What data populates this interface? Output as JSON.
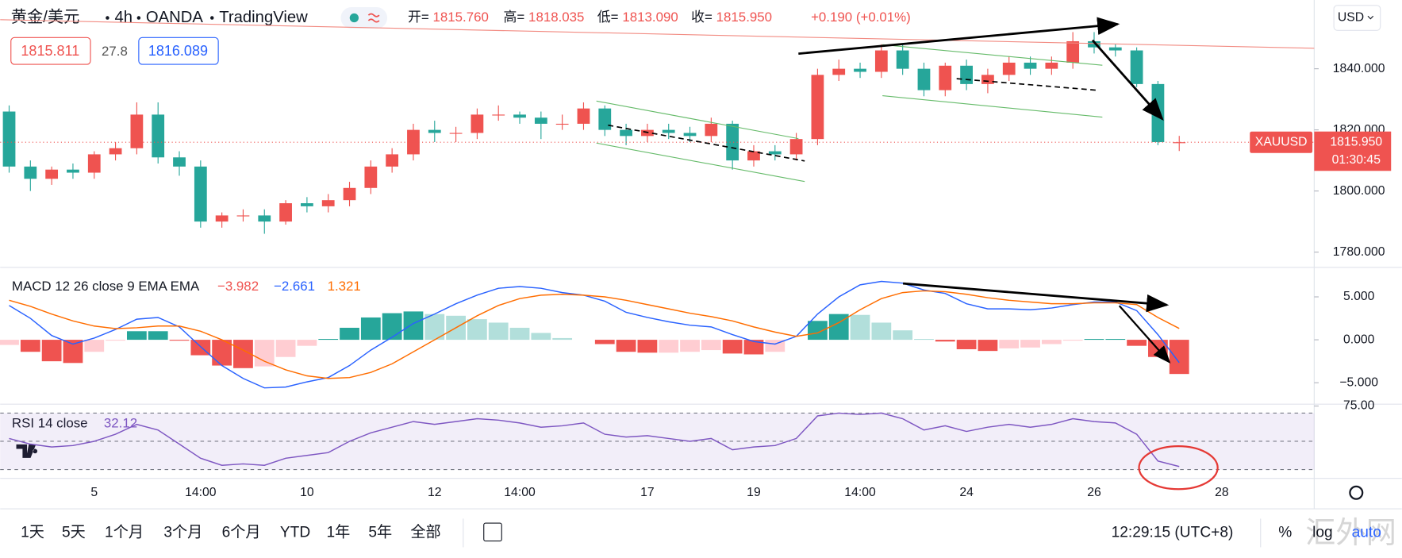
{
  "header": {
    "title": "黄金/美元",
    "interval": "4h",
    "broker": "OANDA",
    "platform": "TradingView",
    "ohlc": [
      {
        "label": "开=",
        "value": "1815.760"
      },
      {
        "label": "高=",
        "value": "1818.035"
      },
      {
        "label": "低=",
        "value": "1813.090"
      },
      {
        "label": "收=",
        "value": "1815.950"
      }
    ],
    "change": "+0.190 (+0.01%)",
    "bid": "1815.811",
    "spread": "27.8",
    "ask": "1816.089",
    "currency": "USD"
  },
  "price_tag": {
    "symbol": "XAUUSD",
    "price": "1815.950",
    "countdown": "01:30:45"
  },
  "chart_data": [
    {
      "type": "candlestick",
      "up_color": "#ef5350",
      "down_color": "#26a69a",
      "categories": [
        null,
        null,
        null,
        null,
        "5",
        null,
        null,
        null,
        null,
        "14:00",
        null,
        null,
        null,
        null,
        "10",
        null,
        null,
        null,
        null,
        null,
        "12",
        null,
        null,
        null,
        "14:00",
        null,
        null,
        null,
        null,
        null,
        "17",
        null,
        null,
        null,
        null,
        "19",
        null,
        null,
        null,
        null,
        "14:00",
        null,
        null,
        null,
        null,
        "24",
        null,
        null,
        null,
        null,
        null,
        "26",
        null,
        null,
        null,
        null,
        null,
        "28"
      ],
      "open": [
        1826,
        1808,
        1804,
        1807,
        1806,
        1812,
        1814,
        1825,
        1811,
        1808,
        1790,
        1792,
        1792,
        1790,
        1796,
        1795,
        1797,
        1801,
        1808,
        1812,
        1820,
        1819,
        1819,
        1825,
        1825,
        1824,
        1822,
        1822,
        1827,
        1820,
        1818,
        1820,
        1819,
        1818,
        1822,
        1810,
        1813,
        1812,
        1817,
        1838,
        1840,
        1839,
        1846,
        1840,
        1833,
        1841,
        1835,
        1838,
        1842,
        1840,
        1842,
        1849,
        1847,
        1846,
        1835,
        1815.76,
        null,
        null
      ],
      "high": [
        1828,
        1810,
        1808,
        1809,
        1813,
        1816,
        1829,
        1829,
        1813,
        1810,
        1793,
        1794,
        1794,
        1797,
        1798,
        1799,
        1803,
        1810,
        1814,
        1822,
        1823,
        1821,
        1827,
        1828,
        1826,
        1826,
        1825,
        1829,
        1828,
        1822,
        1822,
        1822,
        1821,
        1824,
        1823,
        1815,
        1815,
        1819,
        1840,
        1843,
        1842,
        1848,
        1848,
        1842,
        1842,
        1843,
        1840,
        1844,
        1844,
        1844,
        1852,
        1852,
        1848,
        1847,
        1836,
        1818.035,
        null,
        null
      ],
      "low": [
        1806,
        1800,
        1802,
        1804,
        1804,
        1810,
        1812,
        1809,
        1805,
        1788,
        1788,
        1790,
        1786,
        1789,
        1793,
        1793,
        1795,
        1799,
        1806,
        1810,
        1816,
        1816,
        1817,
        1823,
        1822,
        1817,
        1820,
        1820,
        1818,
        1815,
        1816,
        1817,
        1816,
        1816,
        1807,
        1808,
        1810,
        1810,
        1815,
        1836,
        1837,
        1837,
        1838,
        1831,
        1831,
        1833,
        1832,
        1836,
        1838,
        1838,
        1840,
        1845,
        1844,
        1834,
        1815,
        1813.09,
        null,
        null
      ],
      "close": [
        1808,
        1804,
        1807,
        1806,
        1812,
        1814,
        1825,
        1811,
        1808,
        1790,
        1792,
        1792,
        1790,
        1796,
        1795,
        1797,
        1801,
        1808,
        1812,
        1820,
        1819,
        1819,
        1825,
        1825,
        1824,
        1822,
        1822,
        1827,
        1820,
        1818,
        1820,
        1819,
        1818,
        1822,
        1810,
        1813,
        1812,
        1817,
        1838,
        1840,
        1839,
        1846,
        1840,
        1833,
        1841,
        1835,
        1838,
        1842,
        1840,
        1842,
        1849,
        1847,
        1846,
        1835,
        1816,
        1815.95,
        null,
        null
      ],
      "ylim": [
        1775.3,
        1862.5
      ],
      "yticks": [
        {
          "value": 1780,
          "label": "1780.000"
        },
        {
          "value": 1800,
          "label": "1800.000"
        },
        {
          "value": 1820,
          "label": "1820.000"
        },
        {
          "value": 1840,
          "label": "1840.000"
        }
      ]
    },
    {
      "type": "macd",
      "title": "MACD 12 26 close 9 EMA EMA",
      "value_labels": [
        "−3.982",
        "−2.661",
        "1.321"
      ],
      "histogram_colors": [
        "#26a69a",
        "#b2dfdb",
        "#ffcdd2",
        "#ef5350"
      ],
      "histogram": [
        -0.6,
        -1.4,
        -2.5,
        -2.7,
        -1.4,
        -0.1,
        1.0,
        1.0,
        -0.1,
        -1.8,
        -3.0,
        -3.3,
        -3.1,
        -2.0,
        -0.7,
        0.1,
        1.4,
        2.6,
        3.1,
        3.3,
        3.0,
        2.8,
        2.4,
        2.0,
        1.4,
        0.8,
        0.2,
        0,
        -0.5,
        -1.4,
        -1.5,
        -1.5,
        -1.4,
        -1.2,
        -1.6,
        -1.7,
        -1.4,
        0,
        2.2,
        3.0,
        2.9,
        2.0,
        1.1,
        0.1,
        -0.2,
        -1.1,
        -1.3,
        -1.0,
        -0.9,
        -0.5,
        -0.1,
        0.1,
        0.1,
        -0.7,
        -2.0,
        -3.982,
        null,
        null
      ],
      "series": [
        {
          "color": "#2962ff",
          "values": [
            4.0,
            2.5,
            0.5,
            -0.5,
            0.2,
            1.2,
            2.4,
            2.6,
            1.5,
            -0.8,
            -3.0,
            -4.5,
            -5.6,
            -5.5,
            -4.9,
            -4.4,
            -3.0,
            -1.2,
            0.3,
            1.9,
            3.0,
            4.2,
            5.2,
            6.0,
            6.2,
            6.0,
            5.5,
            5.2,
            4.5,
            3.2,
            2.6,
            2.1,
            1.7,
            1.5,
            0.6,
            -0.2,
            -0.5,
            0.4,
            3.0,
            5.0,
            6.4,
            6.8,
            6.6,
            5.8,
            5.4,
            4.2,
            3.6,
            3.6,
            3.5,
            3.7,
            4.1,
            4.4,
            4.4,
            3.4,
            0.6,
            -2.661,
            null,
            null
          ]
        },
        {
          "color": "#ff6d00",
          "values": [
            4.6,
            3.9,
            3.0,
            2.2,
            1.6,
            1.3,
            1.4,
            1.6,
            1.6,
            1.0,
            0,
            -1.2,
            -2.5,
            -3.5,
            -4.2,
            -4.5,
            -4.4,
            -3.8,
            -2.8,
            -1.4,
            0,
            1.4,
            2.8,
            4.0,
            4.8,
            5.2,
            5.3,
            5.2,
            5.0,
            4.6,
            4.1,
            3.6,
            3.1,
            2.7,
            2.2,
            1.5,
            0.9,
            0.4,
            0.8,
            2.0,
            3.5,
            4.8,
            5.5,
            5.7,
            5.6,
            5.3,
            4.9,
            4.6,
            4.4,
            4.2,
            4.2,
            4.3,
            4.3,
            4.1,
            2.6,
            1.321,
            null,
            null
          ]
        }
      ],
      "ylim": [
        -7.5,
        8.33
      ],
      "yticks": [
        {
          "value": -5,
          "label": "−5.000"
        },
        {
          "value": 0,
          "label": "0.000"
        },
        {
          "value": 5,
          "label": "5.000"
        }
      ]
    },
    {
      "type": "rsi",
      "title": "RSI 14 close",
      "value_label": "32.12",
      "color": "#7e57c2",
      "bands": [
        70,
        50,
        30
      ],
      "values": [
        52,
        48,
        46,
        47,
        50,
        55,
        62,
        58,
        48,
        38,
        33,
        34,
        33,
        38,
        40,
        42,
        50,
        56,
        60,
        64,
        62,
        64,
        66,
        65,
        63,
        60,
        61,
        63,
        55,
        53,
        54,
        52,
        50,
        52,
        44,
        46,
        47,
        52,
        68,
        70,
        69,
        70,
        66,
        58,
        61,
        57,
        60,
        62,
        60,
        62,
        66,
        64,
        63,
        55,
        36,
        32.12,
        null,
        null
      ],
      "ylim": [
        23.7,
        76.3
      ],
      "yticks": [
        {
          "value": 75,
          "label": "75.00"
        }
      ]
    }
  ],
  "toolbar": {
    "ranges": [
      "1天",
      "5天",
      "1个月",
      "3个月",
      "6个月",
      "YTD",
      "1年",
      "5年",
      "全部"
    ],
    "clock": "12:29:15 (UTC+8)",
    "percent": "%",
    "log": "log",
    "auto": "auto",
    "watermark": "汇外网"
  }
}
